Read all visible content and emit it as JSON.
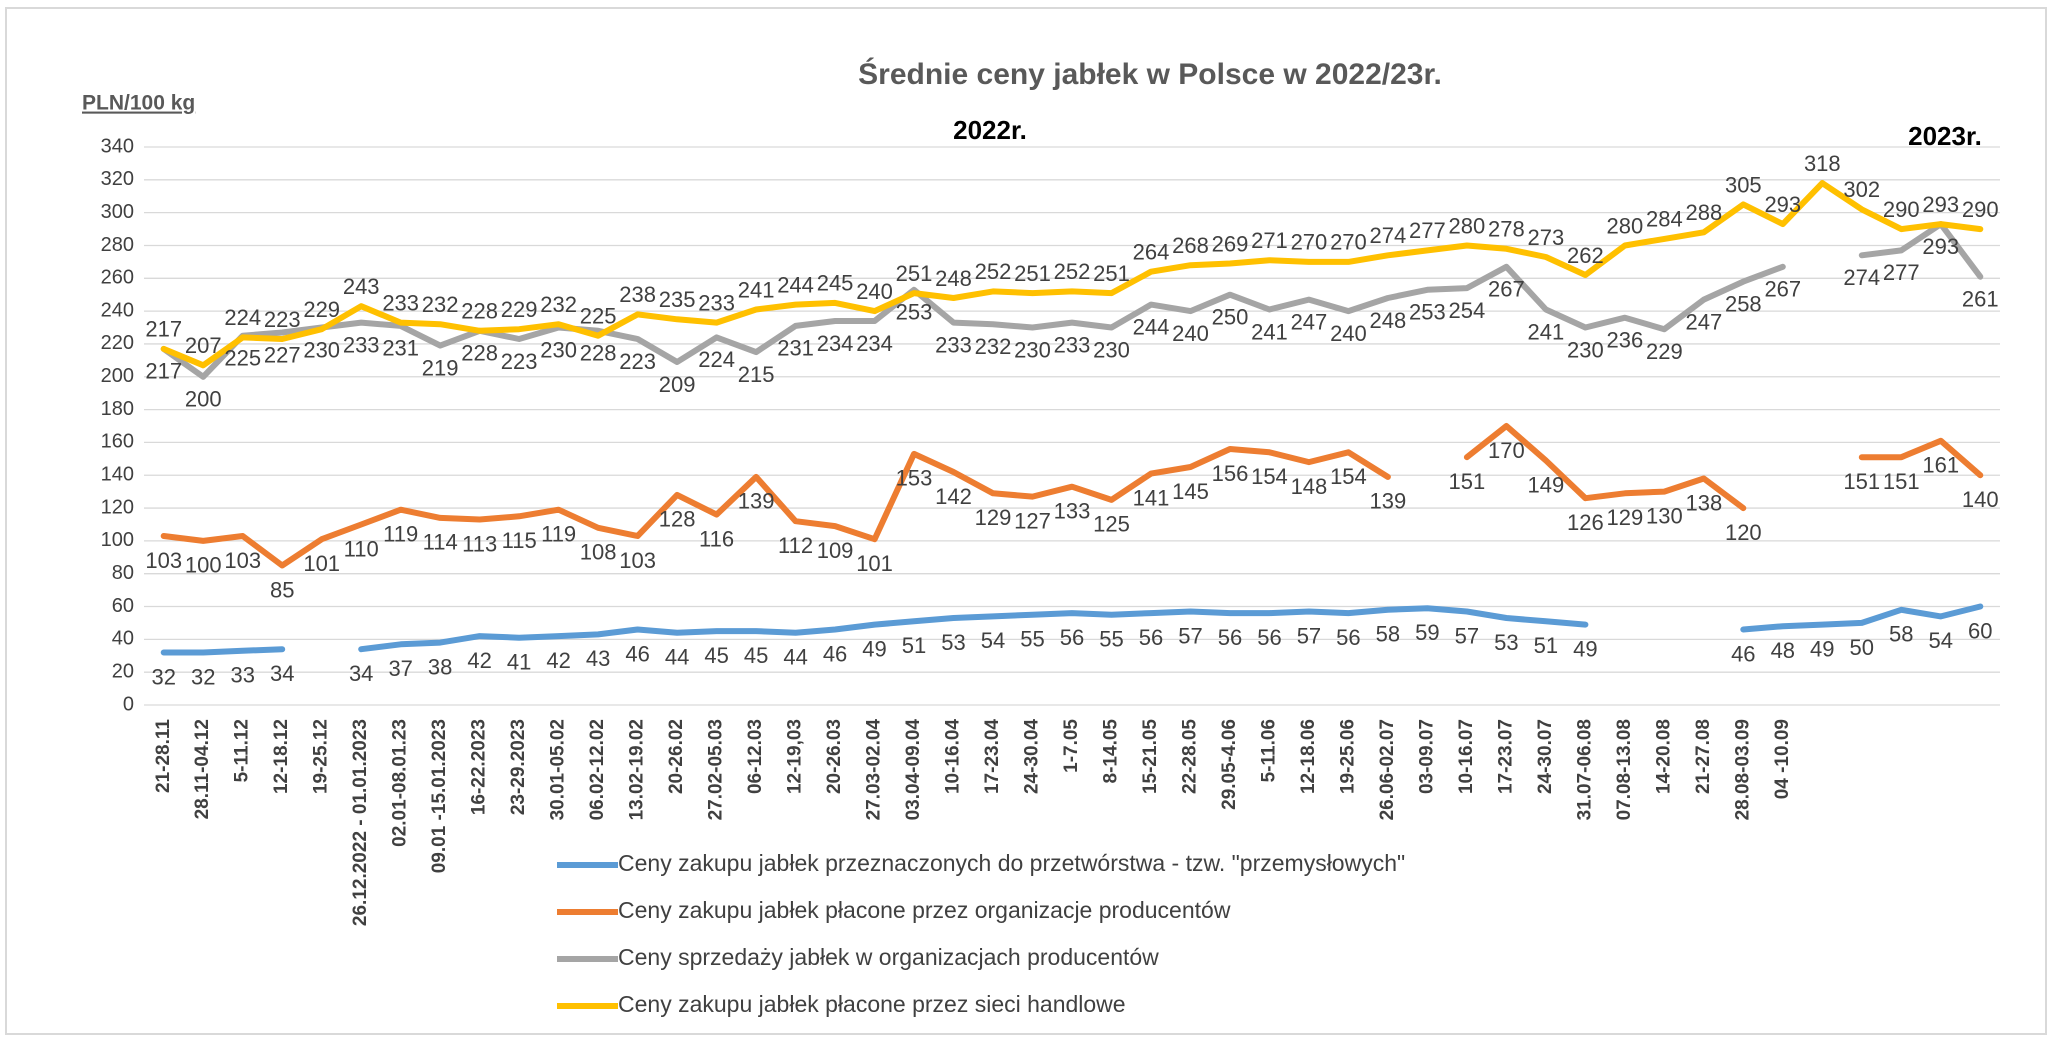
{
  "chart_data": {
    "type": "line",
    "title": "Średnie ceny jabłek w Polsce w 2022/23r.",
    "y_label": "PLN/100 kg",
    "annotations": [
      "2022r.",
      "2023r."
    ],
    "categories": [
      "21-28.11",
      "28.11-04.12",
      "5-11.12",
      "12-18.12",
      "19-25.12",
      "26.12.2022 - 01.01.2023",
      "02.01-08.01.23",
      "09.01 -15.01.2023",
      "16-22.2023",
      "23-29.2023",
      "30.01-05.02",
      "06.02-12.02",
      "13.02-19.02",
      "20-26.02",
      "27.02-05.03",
      "06-12.03",
      "12-19,03",
      "20-26.03",
      "27.03-02.04",
      "03.04-09.04",
      "10-16.04",
      "17-23.04",
      "24-30.04",
      "1-7.05",
      "8-14.05",
      "15-21.05",
      "22-28.05",
      "29.05-4.06",
      "5-11.06",
      "12-18.06",
      "19-25.06",
      "26.06-02.07",
      "03-09.07",
      "10-16.07",
      "17-23.07",
      "24-30.07",
      "31.07-06.08",
      "07.08-13.08",
      "14-20.08",
      "21-27.08",
      "28.08-03.09",
      "04 -10.09",
      null,
      null,
      null,
      null,
      null
    ],
    "series": [
      {
        "name": "Ceny zakupu jabłek przeznaczonych do przetwórstwa - tzw. \"przemysłowych\"",
        "color": "#5b9bd5",
        "values": [
          32,
          32,
          33,
          34,
          null,
          34,
          37,
          38,
          42,
          41,
          42,
          43,
          46,
          44,
          45,
          45,
          44,
          46,
          49,
          51,
          53,
          54,
          55,
          56,
          55,
          56,
          57,
          56,
          56,
          57,
          56,
          58,
          59,
          57,
          53,
          51,
          49,
          null,
          null,
          null,
          46,
          48,
          49,
          50,
          58,
          54,
          60
        ]
      },
      {
        "name": "Ceny zakupu jabłek płacone przez organizacje  producentów",
        "color": "#ed7d31",
        "values": [
          103,
          100,
          103,
          85,
          101,
          110,
          119,
          114,
          113,
          115,
          119,
          108,
          103,
          128,
          116,
          139,
          112,
          109,
          101,
          153,
          142,
          129,
          127,
          133,
          125,
          141,
          145,
          156,
          154,
          148,
          154,
          139,
          null,
          151,
          170,
          149,
          126,
          129,
          130,
          138,
          120,
          null,
          null,
          151,
          151,
          161,
          140
        ]
      },
      {
        "name": "Ceny sprzedaży jabłek w organizacjach  producentów",
        "color": "#a5a5a5",
        "values": [
          217,
          200,
          225,
          227,
          230,
          233,
          231,
          219,
          228,
          223,
          230,
          228,
          223,
          209,
          224,
          215,
          231,
          234,
          234,
          253,
          233,
          232,
          230,
          233,
          230,
          244,
          240,
          250,
          241,
          247,
          240,
          248,
          253,
          254,
          267,
          241,
          230,
          236,
          229,
          247,
          258,
          267,
          null,
          274,
          277,
          293,
          261
        ]
      },
      {
        "name": "Ceny zakupu jabłek płacone przez sieci handlowe",
        "color": "#ffc000",
        "values": [
          217,
          207,
          224,
          223,
          229,
          243,
          233,
          232,
          228,
          229,
          232,
          225,
          238,
          235,
          233,
          241,
          244,
          245,
          240,
          251,
          248,
          252,
          251,
          252,
          251,
          264,
          268,
          269,
          271,
          270,
          270,
          274,
          277,
          280,
          278,
          273,
          262,
          280,
          284,
          288,
          305,
          293,
          318,
          302,
          290,
          293,
          290
        ]
      }
    ],
    "ylim": [
      0,
      340
    ],
    "yticks": [
      0,
      20,
      40,
      60,
      80,
      100,
      120,
      140,
      160,
      180,
      200,
      220,
      240,
      260,
      280,
      300,
      320,
      340
    ],
    "grid": true
  }
}
